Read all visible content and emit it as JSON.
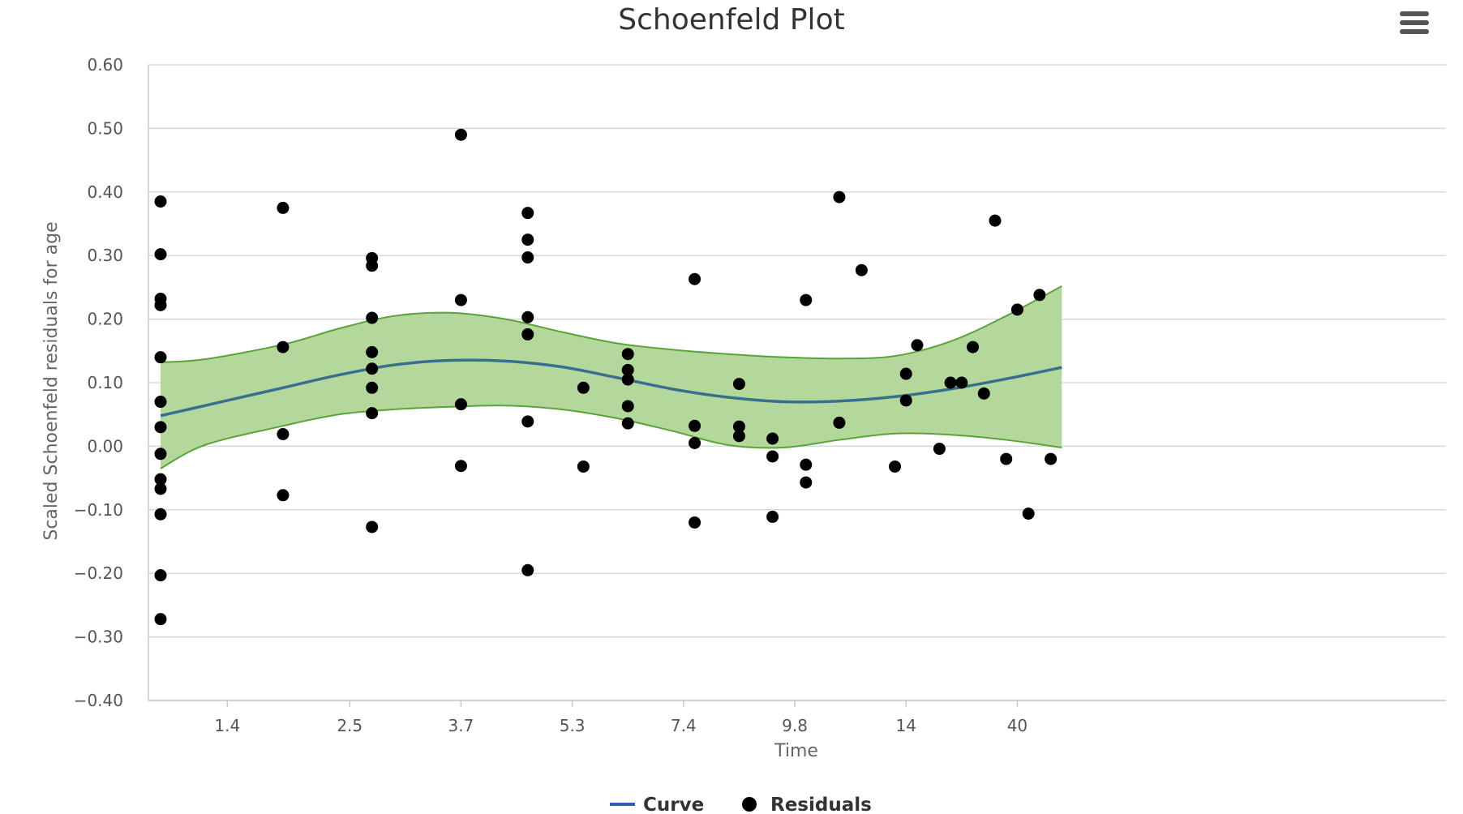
{
  "chart_data": {
    "type": "scatter",
    "title": "Schoenfeld Plot",
    "xlabel": "Time",
    "ylabel": "Scaled Schoenfeld residuals for age",
    "ylim": [
      -0.4,
      0.6
    ],
    "y_ticks": [
      "0.60",
      "0.50",
      "0.40",
      "0.30",
      "0.20",
      "0.10",
      "0.00",
      "−0.10",
      "−0.20",
      "−0.30",
      "−0.40"
    ],
    "y_tick_values": [
      0.6,
      0.5,
      0.4,
      0.3,
      0.2,
      0.1,
      0.0,
      -0.1,
      -0.2,
      -0.3,
      -0.4
    ],
    "x_scale": "rank (ordered event times)",
    "x_range": [
      0.5,
      78
    ],
    "x_ticks": [
      {
        "label": "1.4",
        "rank": 7
      },
      {
        "label": "2.5",
        "rank": 18
      },
      {
        "label": "3.7",
        "rank": 28
      },
      {
        "label": "5.3",
        "rank": 38
      },
      {
        "label": "7.4",
        "rank": 48
      },
      {
        "label": "9.8",
        "rank": 58
      },
      {
        "label": "14",
        "rank": 68
      },
      {
        "label": "40",
        "rank": 78
      }
    ],
    "grid": true,
    "legend": "bottom-center",
    "colors": {
      "curve": "#3a6e8f",
      "band_fill": "#b4d89b",
      "band_line": "#5aa33a",
      "points": "#000000"
    },
    "series": [
      {
        "name": "Curve",
        "type": "line",
        "x": [
          1,
          7,
          12,
          17,
          22,
          27,
          32,
          37,
          42,
          47,
          52,
          57,
          62,
          67,
          72,
          77,
          82
        ],
        "y": [
          0.048,
          0.072,
          0.092,
          0.112,
          0.128,
          0.135,
          0.134,
          0.125,
          0.108,
          0.09,
          0.077,
          0.07,
          0.071,
          0.078,
          0.09,
          0.106,
          0.124
        ]
      },
      {
        "name": "Confidence band",
        "type": "area",
        "x": [
          1,
          5,
          12,
          17,
          22,
          27,
          32,
          37,
          42,
          47,
          52,
          57,
          62,
          67,
          72,
          77,
          82
        ],
        "upper": [
          0.132,
          0.137,
          0.16,
          0.185,
          0.205,
          0.21,
          0.2,
          0.18,
          0.162,
          0.152,
          0.145,
          0.14,
          0.138,
          0.142,
          0.165,
          0.205,
          0.252
        ],
        "lower": [
          -0.035,
          0.002,
          0.032,
          0.05,
          0.058,
          0.062,
          0.064,
          0.058,
          0.044,
          0.024,
          0.002,
          -0.002,
          0.01,
          0.02,
          0.018,
          0.01,
          -0.002
        ]
      },
      {
        "name": "Residuals",
        "type": "scatter",
        "points": [
          [
            1,
            0.385
          ],
          [
            1,
            0.302
          ],
          [
            1,
            0.232
          ],
          [
            1,
            0.222
          ],
          [
            1,
            0.14
          ],
          [
            1,
            0.07
          ],
          [
            1,
            0.03
          ],
          [
            1,
            -0.012
          ],
          [
            1,
            -0.052
          ],
          [
            1,
            -0.067
          ],
          [
            1,
            -0.107
          ],
          [
            1,
            -0.203
          ],
          [
            1,
            -0.272
          ],
          [
            12,
            0.375
          ],
          [
            12,
            0.156
          ],
          [
            12,
            0.019
          ],
          [
            12,
            -0.077
          ],
          [
            20,
            0.296
          ],
          [
            20,
            0.284
          ],
          [
            20,
            0.202
          ],
          [
            20,
            0.148
          ],
          [
            20,
            0.122
          ],
          [
            20,
            0.092
          ],
          [
            20,
            0.052
          ],
          [
            20,
            -0.127
          ],
          [
            28,
            0.49
          ],
          [
            28,
            0.23
          ],
          [
            28,
            0.066
          ],
          [
            28,
            -0.031
          ],
          [
            34,
            0.367
          ],
          [
            34,
            0.325
          ],
          [
            34,
            0.297
          ],
          [
            34,
            0.203
          ],
          [
            34,
            0.176
          ],
          [
            34,
            0.039
          ],
          [
            34,
            -0.195
          ],
          [
            39,
            0.092
          ],
          [
            39,
            -0.032
          ],
          [
            43,
            0.145
          ],
          [
            43,
            0.12
          ],
          [
            43,
            0.105
          ],
          [
            43,
            0.063
          ],
          [
            43,
            0.036
          ],
          [
            49,
            0.263
          ],
          [
            49,
            0.032
          ],
          [
            49,
            0.005
          ],
          [
            49,
            -0.12
          ],
          [
            53,
            0.098
          ],
          [
            53,
            0.031
          ],
          [
            53,
            0.016
          ],
          [
            56,
            0.012
          ],
          [
            56,
            -0.016
          ],
          [
            56,
            -0.111
          ],
          [
            59,
            0.23
          ],
          [
            59,
            -0.029
          ],
          [
            59,
            -0.057
          ],
          [
            62,
            0.392
          ],
          [
            62,
            0.037
          ],
          [
            64,
            0.277
          ],
          [
            67,
            -0.032
          ],
          [
            68,
            0.114
          ],
          [
            68,
            0.072
          ],
          [
            69,
            0.159
          ],
          [
            71,
            -0.004
          ],
          [
            72,
            0.1
          ],
          [
            73,
            0.1
          ],
          [
            74,
            0.156
          ],
          [
            75,
            0.083
          ],
          [
            76,
            0.355
          ],
          [
            77,
            -0.02
          ],
          [
            78,
            0.215
          ],
          [
            79,
            -0.106
          ],
          [
            80,
            0.238
          ],
          [
            81,
            -0.02
          ]
        ]
      }
    ],
    "legend_entries": [
      "Curve",
      "Residuals"
    ]
  }
}
